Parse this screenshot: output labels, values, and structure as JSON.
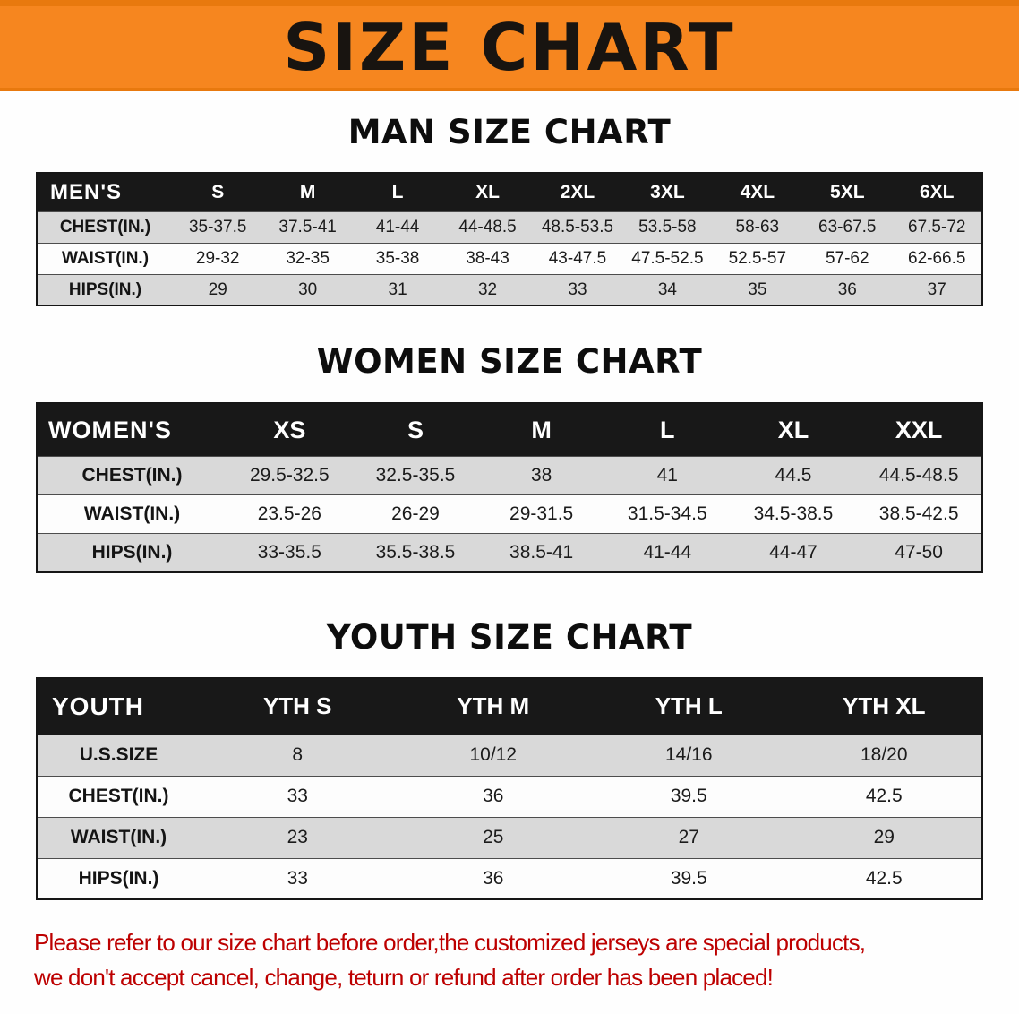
{
  "banner": {
    "title": "SIZE CHART"
  },
  "colors": {
    "banner_bg": "#f6861f",
    "banner_edge": "#e8790e",
    "header_bg": "#181818",
    "row_alt_bg": "#d9d9d9",
    "footer_text": "#bd0000"
  },
  "chart_data": [
    {
      "type": "table",
      "title": "MAN SIZE CHART",
      "header": [
        "MEN'S",
        "S",
        "M",
        "L",
        "XL",
        "2XL",
        "3XL",
        "4XL",
        "5XL",
        "6XL"
      ],
      "rows": [
        [
          "CHEST(IN.)",
          "35-37.5",
          "37.5-41",
          "41-44",
          "44-48.5",
          "48.5-53.5",
          "53.5-58",
          "58-63",
          "63-67.5",
          "67.5-72"
        ],
        [
          "WAIST(IN.)",
          "29-32",
          "32-35",
          "35-38",
          "38-43",
          "43-47.5",
          "47.5-52.5",
          "52.5-57",
          "57-62",
          "62-66.5"
        ],
        [
          "HIPS(IN.)",
          "29",
          "30",
          "31",
          "32",
          "33",
          "34",
          "35",
          "36",
          "37"
        ]
      ]
    },
    {
      "type": "table",
      "title": "WOMEN SIZE CHART",
      "header": [
        "WOMEN'S",
        "XS",
        "S",
        "M",
        "L",
        "XL",
        "XXL"
      ],
      "rows": [
        [
          "CHEST(IN.)",
          "29.5-32.5",
          "32.5-35.5",
          "38",
          "41",
          "44.5",
          "44.5-48.5"
        ],
        [
          "WAIST(IN.)",
          "23.5-26",
          "26-29",
          "29-31.5",
          "31.5-34.5",
          "34.5-38.5",
          "38.5-42.5"
        ],
        [
          "HIPS(IN.)",
          "33-35.5",
          "35.5-38.5",
          "38.5-41",
          "41-44",
          "44-47",
          "47-50"
        ]
      ]
    },
    {
      "type": "table",
      "title": "YOUTH SIZE CHART",
      "header": [
        "YOUTH",
        "YTH S",
        "YTH M",
        "YTH L",
        "YTH XL"
      ],
      "rows": [
        [
          "U.S.SIZE",
          "8",
          "10/12",
          "14/16",
          "18/20"
        ],
        [
          "CHEST(IN.)",
          "33",
          "36",
          "39.5",
          "42.5"
        ],
        [
          "WAIST(IN.)",
          "23",
          "25",
          "27",
          "29"
        ],
        [
          "HIPS(IN.)",
          "33",
          "36",
          "39.5",
          "42.5"
        ]
      ]
    }
  ],
  "footer": {
    "line1": "Please refer to our size chart before order,the customized jerseys are special products,",
    "line2": "we don't accept cancel, change, teturn or refund after order has been placed!"
  }
}
